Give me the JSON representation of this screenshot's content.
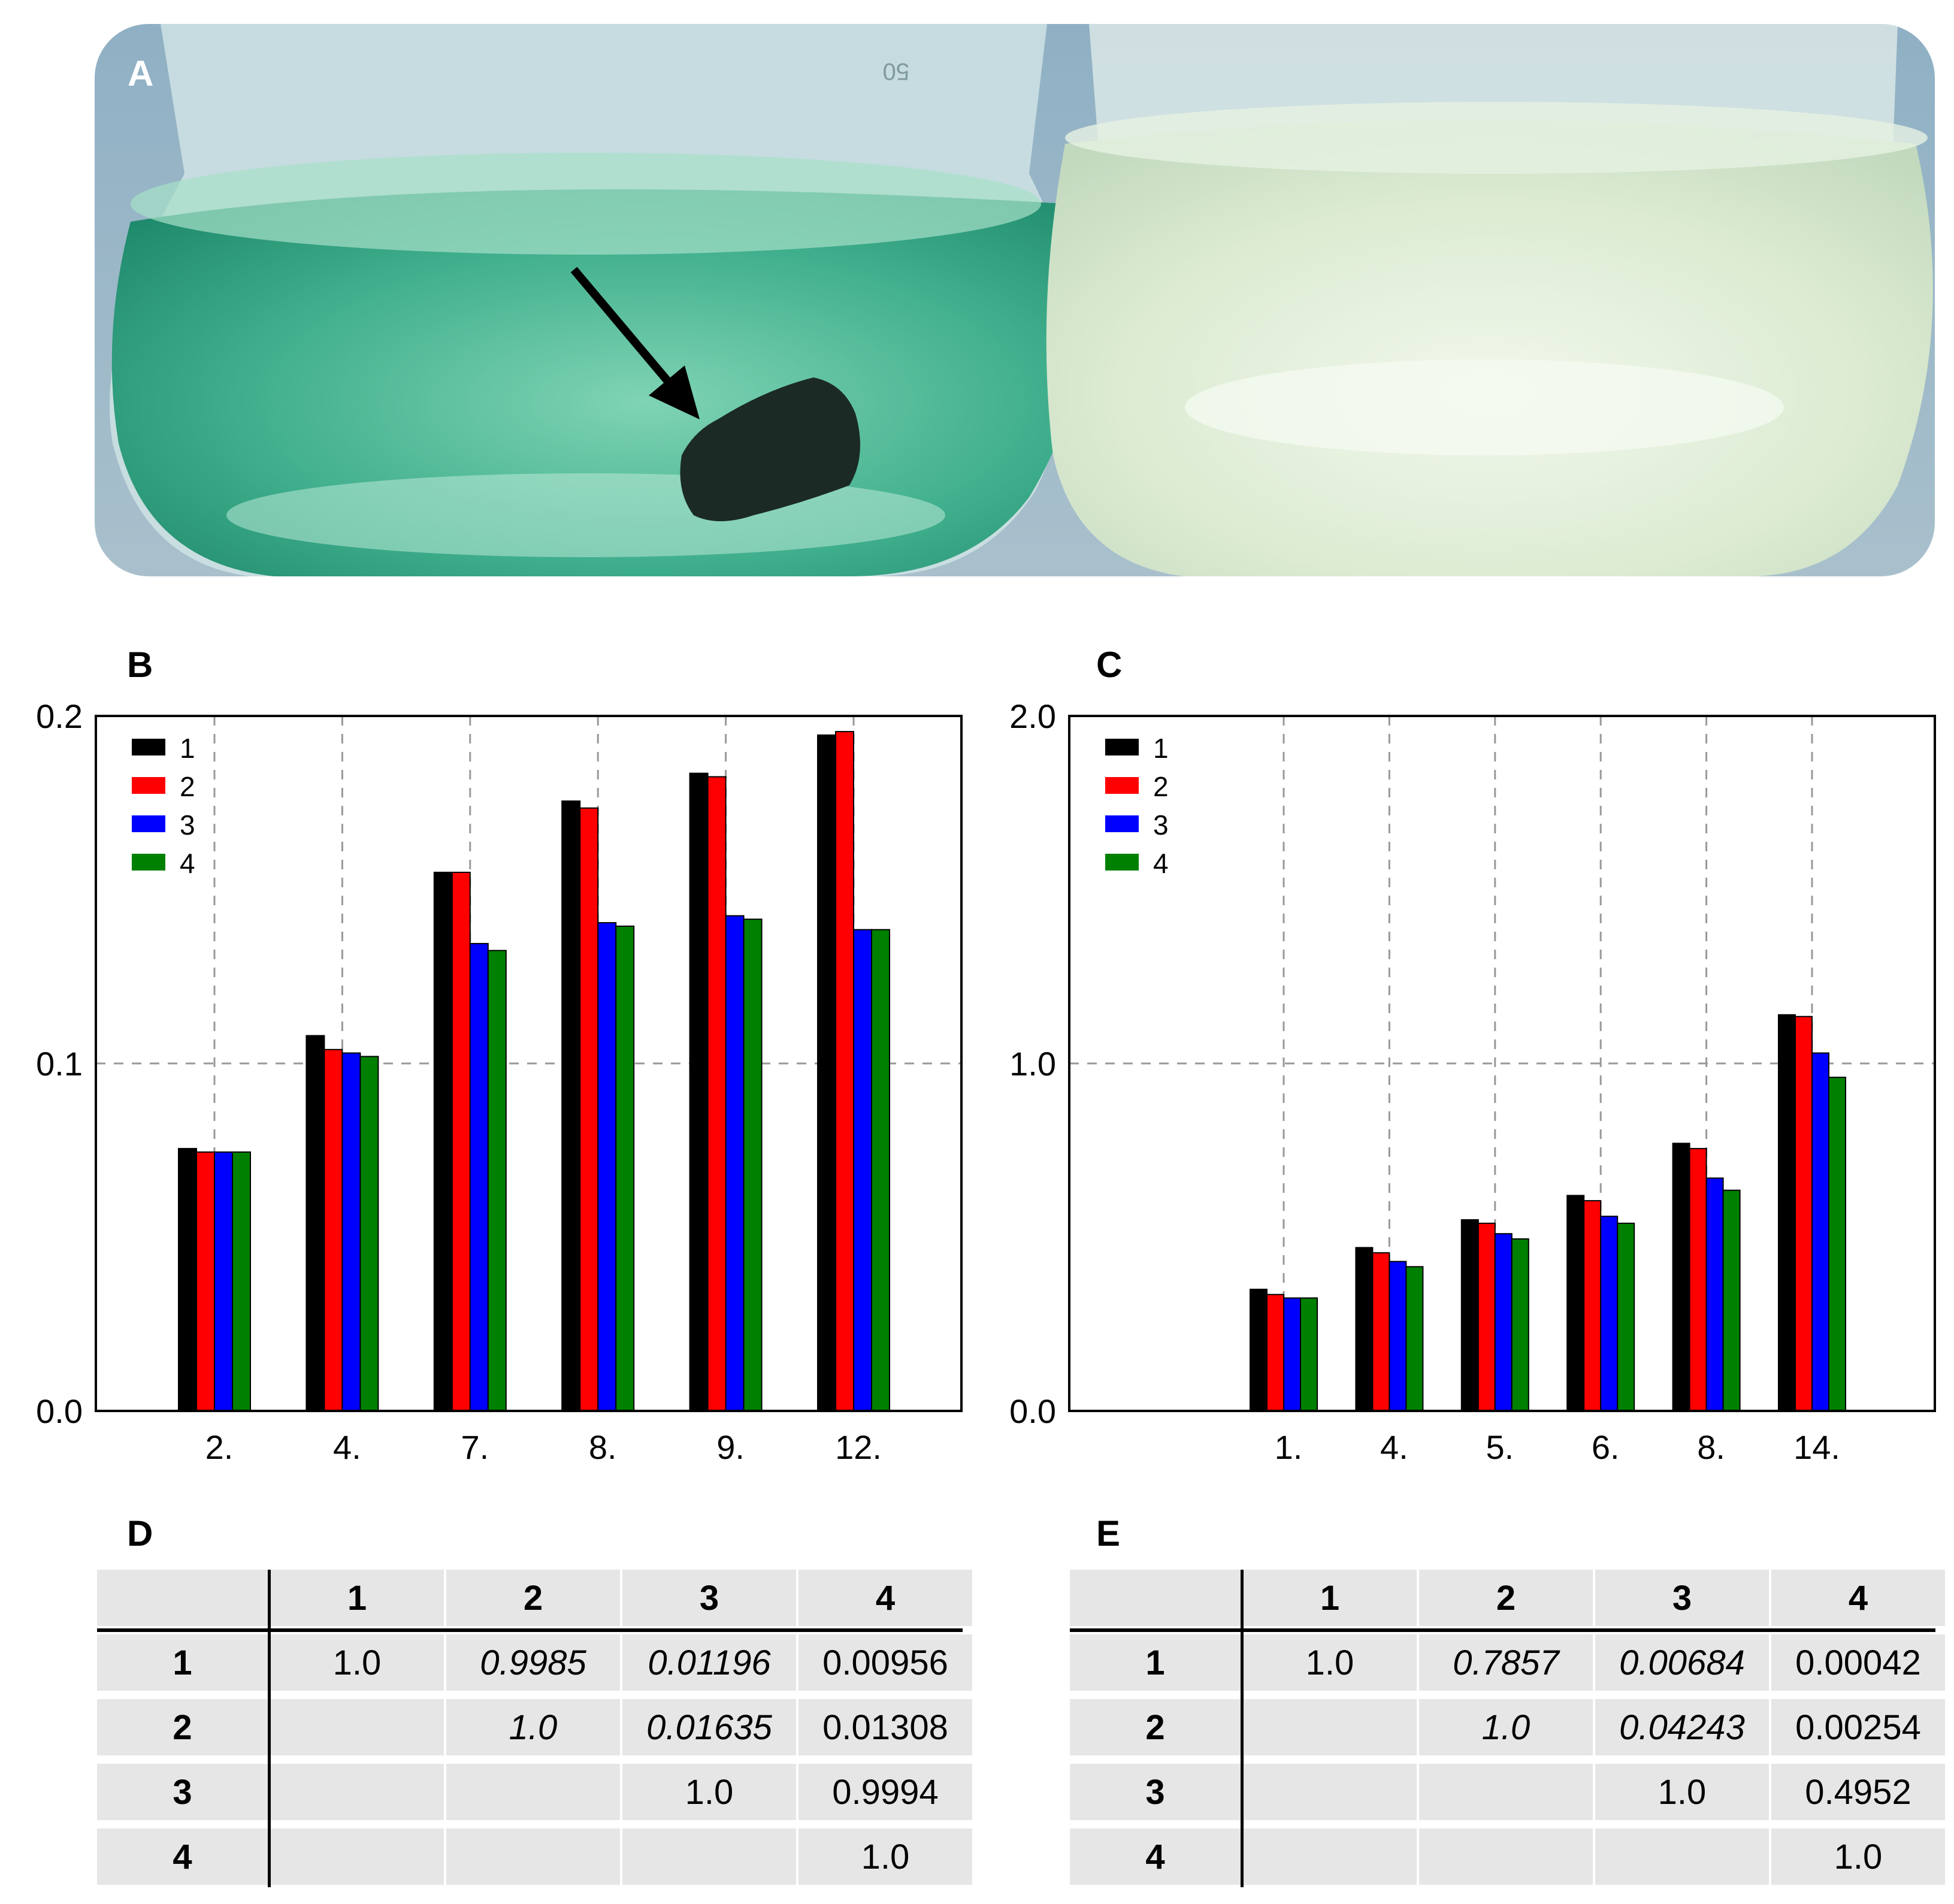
{
  "figure": {
    "panel_a_label": "A",
    "panel_b_label": "B",
    "panel_c_label": "C",
    "panel_d_label": "D",
    "panel_e_label": "E",
    "flask_volume_mark": "50"
  },
  "colors": {
    "series_1": "#000000",
    "series_2": "#ff0000",
    "series_3": "#0000ff",
    "series_4": "#008000"
  },
  "chart_data": [
    {
      "panel": "B",
      "type": "bar",
      "categories": [
        "2.",
        "4.",
        "7.",
        "8.",
        "9.",
        "12."
      ],
      "series": [
        {
          "name": "1",
          "values": [
            0.0755,
            0.108,
            0.155,
            0.1755,
            0.1835,
            0.1945
          ]
        },
        {
          "name": "2",
          "values": [
            0.0745,
            0.104,
            0.155,
            0.1735,
            0.1825,
            0.1955
          ]
        },
        {
          "name": "3",
          "values": [
            0.0745,
            0.103,
            0.1345,
            0.1405,
            0.1425,
            0.1385
          ]
        },
        {
          "name": "4",
          "values": [
            0.0745,
            0.102,
            0.1325,
            0.1395,
            0.1415,
            0.1385
          ]
        }
      ],
      "ylim": [
        0.0,
        0.2
      ],
      "yticks": [
        "0.0",
        "0.1",
        "0.2"
      ],
      "grid": true,
      "legend": "top-left",
      "title": "",
      "xlabel": "",
      "ylabel": ""
    },
    {
      "panel": "C",
      "type": "bar",
      "categories": [
        "1.",
        "4.",
        "5.",
        "6.",
        "8.",
        "14."
      ],
      "series": [
        {
          "name": "1",
          "values": [
            0.35,
            0.47,
            0.55,
            0.62,
            0.77,
            1.14
          ]
        },
        {
          "name": "2",
          "values": [
            0.335,
            0.455,
            0.54,
            0.605,
            0.755,
            1.135
          ]
        },
        {
          "name": "3",
          "values": [
            0.325,
            0.43,
            0.51,
            0.56,
            0.67,
            1.03
          ]
        },
        {
          "name": "4",
          "values": [
            0.325,
            0.415,
            0.495,
            0.54,
            0.635,
            0.96
          ]
        }
      ],
      "ylim": [
        0.0,
        2.0
      ],
      "yticks": [
        "0.0",
        "1.0",
        "2.0"
      ],
      "grid": true,
      "legend": "top-left",
      "title": "",
      "xlabel": "",
      "ylabel": ""
    }
  ],
  "table_d": {
    "headers": [
      "",
      "1",
      "2",
      "3",
      "4"
    ],
    "rows": [
      {
        "label": "1",
        "cells": [
          "1.0",
          "0.9985",
          "0.01196",
          "0.00956"
        ]
      },
      {
        "label": "2",
        "cells": [
          "",
          "1.0",
          "0.01635",
          "0.01308"
        ]
      },
      {
        "label": "3",
        "cells": [
          "",
          "",
          "1.0",
          "0.9994"
        ]
      },
      {
        "label": "4",
        "cells": [
          "",
          "",
          "",
          "1.0"
        ]
      }
    ],
    "italic_cells": [
      [
        0,
        2
      ],
      [
        0,
        3
      ],
      [
        1,
        2
      ],
      [
        1,
        3
      ]
    ]
  },
  "table_e": {
    "headers": [
      "",
      "1",
      "2",
      "3",
      "4"
    ],
    "rows": [
      {
        "label": "1",
        "cells": [
          "1.0",
          "0.7857",
          "0.00684",
          "0.00042"
        ]
      },
      {
        "label": "2",
        "cells": [
          "",
          "1.0",
          "0.04243",
          "0.00254"
        ]
      },
      {
        "label": "3",
        "cells": [
          "",
          "",
          "1.0",
          "0.4952"
        ]
      },
      {
        "label": "4",
        "cells": [
          "",
          "",
          "",
          "1.0"
        ]
      }
    ],
    "italic_cells": [
      [
        0,
        2
      ],
      [
        0,
        3
      ],
      [
        1,
        2
      ],
      [
        1,
        3
      ]
    ]
  }
}
